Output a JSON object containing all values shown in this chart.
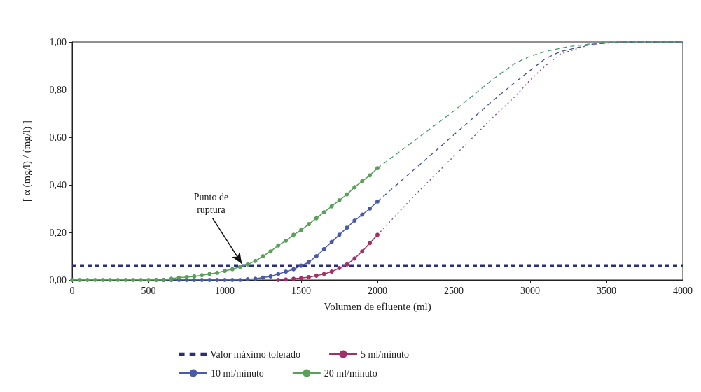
{
  "chart_data": {
    "type": "line",
    "xlabel": "Volumen de efluente (ml)",
    "ylabel": "[ α (mg/l) / (mg/l) ]",
    "xlim": [
      0,
      4000
    ],
    "xticks": [
      0,
      500,
      1000,
      1500,
      2000,
      2500,
      3000,
      3500,
      4000
    ],
    "ylim": [
      0,
      1
    ],
    "yticks": [
      {
        "value": 0,
        "label": "0,00"
      },
      {
        "value": 0.2,
        "label": "0,20"
      },
      {
        "value": 0.4,
        "label": "0,40"
      },
      {
        "value": 0.6,
        "label": "0,60"
      },
      {
        "value": 0.8,
        "label": "0,80"
      },
      {
        "value": 1,
        "label": "1,00"
      }
    ],
    "grid": false,
    "legend": "bottom",
    "annotations": [
      {
        "text": "Punto de\nruptura",
        "x": 1100,
        "y": 0.06
      }
    ],
    "series": [
      {
        "name": "Valor máximo tolerado",
        "color": "#2b2f7a",
        "x": [
          0,
          4000
        ],
        "values": [
          0.06,
          0.06
        ],
        "marker": "none",
        "line_style": "dashed"
      },
      {
        "name": "5 ml/minuto",
        "color": "#a0306a",
        "marker": "circle",
        "line_style": "solid",
        "x": [
          1350,
          1400,
          1450,
          1500,
          1550,
          1600,
          1650,
          1700,
          1750,
          1800,
          1850,
          1900,
          1950,
          2000
        ],
        "values": [
          0,
          0.002,
          0.005,
          0.008,
          0.012,
          0.018,
          0.025,
          0.035,
          0.05,
          0.065,
          0.09,
          0.12,
          0.155,
          0.19
        ]
      },
      {
        "name": "10 ml/minuto",
        "color": "#4a5aa8",
        "marker": "circle",
        "line_style": "solid",
        "x": [
          550,
          600,
          650,
          700,
          750,
          800,
          850,
          900,
          950,
          1000,
          1050,
          1100,
          1150,
          1200,
          1250,
          1300,
          1350,
          1400,
          1450,
          1500,
          1550,
          1600,
          1650,
          1700,
          1750,
          1800,
          1850,
          1900,
          1950,
          2000
        ],
        "values": [
          0,
          0,
          0,
          0,
          0,
          0,
          0,
          0,
          0,
          0,
          0,
          0,
          0.003,
          0.005,
          0.01,
          0.015,
          0.025,
          0.035,
          0.045,
          0.06,
          0.075,
          0.1,
          0.13,
          0.16,
          0.19,
          0.22,
          0.25,
          0.275,
          0.3,
          0.33
        ]
      },
      {
        "name": "20 ml/minuto",
        "color": "#5aa05a",
        "marker": "circle",
        "line_style": "solid",
        "x": [
          0,
          50,
          100,
          150,
          200,
          250,
          300,
          350,
          400,
          450,
          500,
          550,
          600,
          650,
          700,
          750,
          800,
          850,
          900,
          950,
          1000,
          1050,
          1100,
          1150,
          1200,
          1250,
          1300,
          1350,
          1400,
          1450,
          1500,
          1550,
          1600,
          1650,
          1700,
          1750,
          1800,
          1850,
          1900,
          1950,
          2000
        ],
        "values": [
          0,
          0,
          0,
          0,
          0,
          0,
          0,
          0,
          0,
          0,
          0,
          0,
          0,
          0.005,
          0.01,
          0.012,
          0.015,
          0.02,
          0.025,
          0.03,
          0.038,
          0.045,
          0.055,
          0.065,
          0.08,
          0.1,
          0.12,
          0.145,
          0.165,
          0.19,
          0.21,
          0.235,
          0.26,
          0.285,
          0.31,
          0.335,
          0.36,
          0.39,
          0.415,
          0.44,
          0.47
        ]
      },
      {
        "color": "#7a4a8a",
        "marker": "none",
        "line_style": "dotted",
        "x": [
          2000,
          2250,
          2500,
          2750,
          2900,
          3000,
          3100,
          3200,
          3400,
          3600,
          4000
        ],
        "values": [
          0.19,
          0.36,
          0.52,
          0.68,
          0.77,
          0.84,
          0.9,
          0.95,
          0.99,
          1,
          1
        ]
      },
      {
        "color": "#3f4f9a",
        "marker": "none",
        "line_style": "dashed",
        "x": [
          2000,
          2250,
          2500,
          2750,
          2900,
          3000,
          3100,
          3200,
          3400,
          3600,
          4000
        ],
        "values": [
          0.33,
          0.47,
          0.61,
          0.75,
          0.83,
          0.88,
          0.93,
          0.96,
          0.99,
          1,
          1
        ]
      },
      {
        "color": "#4a9a6a",
        "marker": "none",
        "line_style": "dashed",
        "x": [
          2000,
          2250,
          2500,
          2750,
          2900,
          3000,
          3100,
          3250,
          3500,
          4000
        ],
        "values": [
          0.47,
          0.59,
          0.71,
          0.84,
          0.91,
          0.94,
          0.96,
          0.98,
          1,
          1
        ]
      }
    ]
  }
}
